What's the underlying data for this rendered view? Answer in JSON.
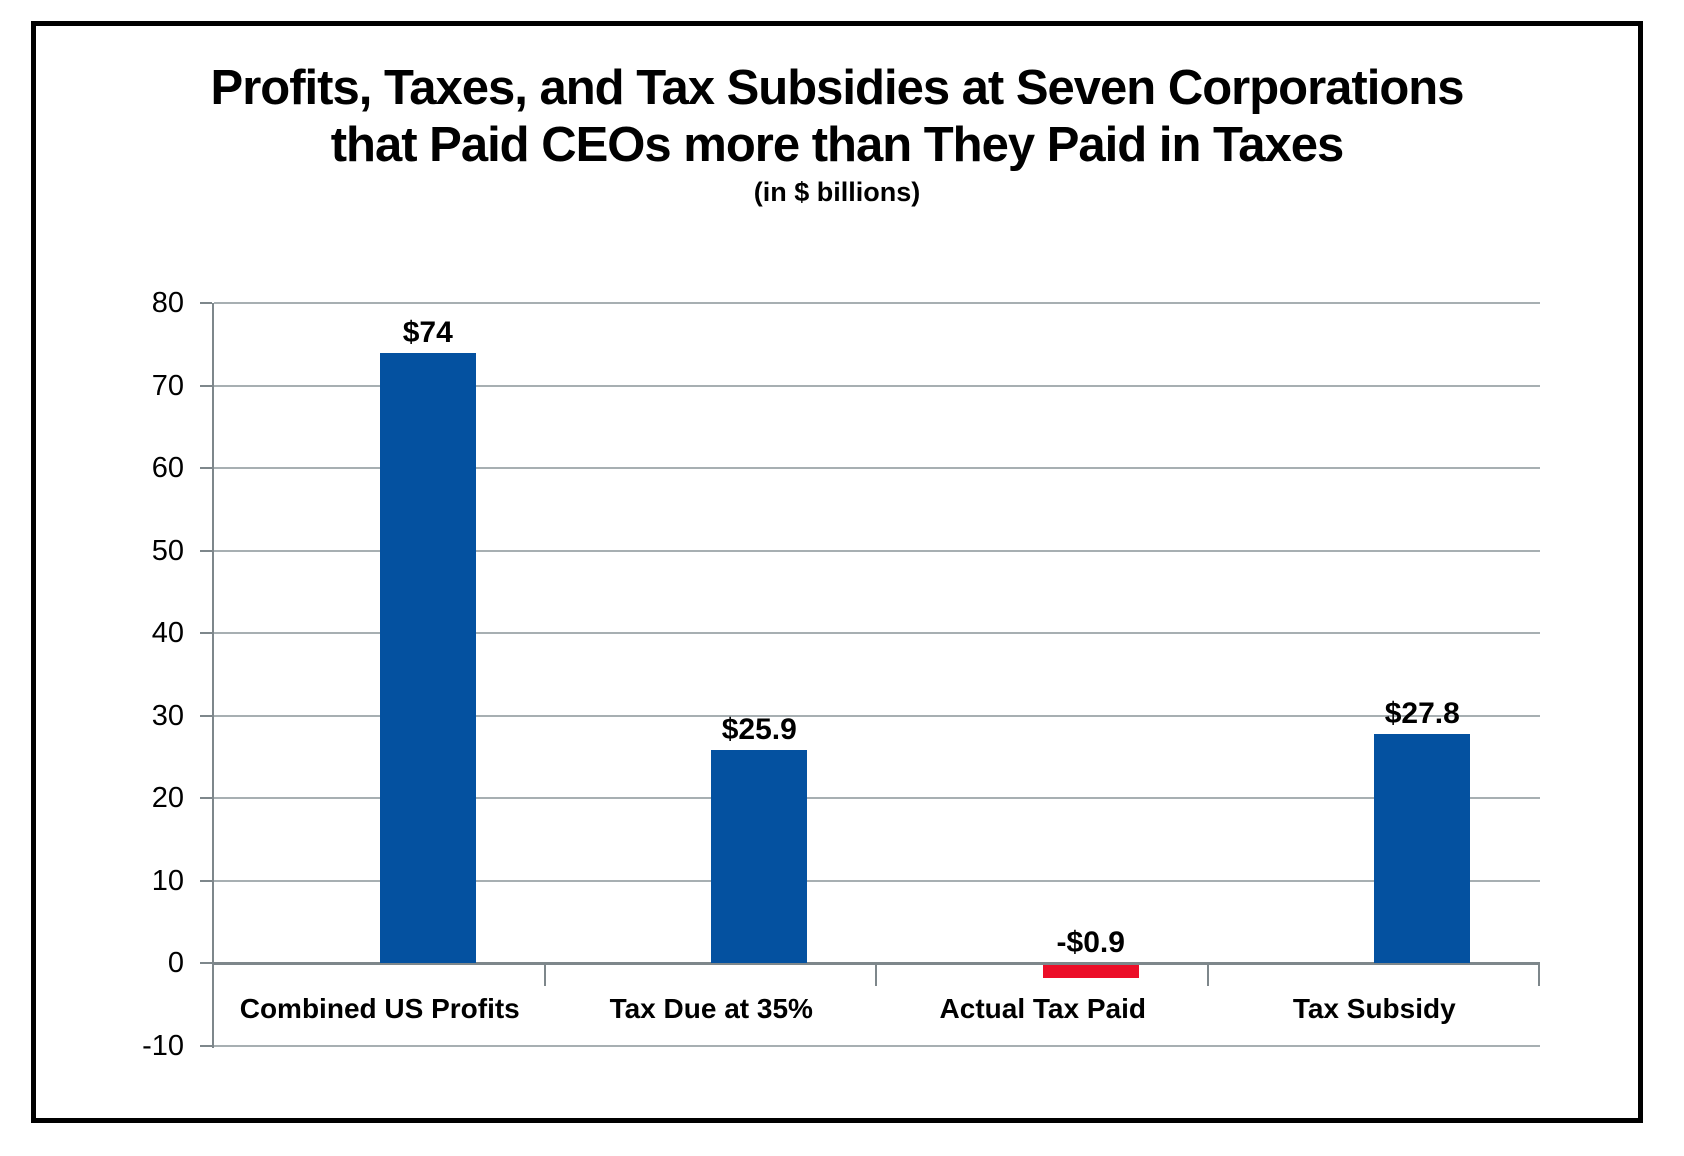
{
  "chart_data": {
    "type": "bar",
    "title": "Profits, Taxes, and Tax Subsidies at Seven Corporations that Paid CEOs more than They Paid in Taxes",
    "title_line1": "Profits, Taxes, and Tax Subsidies at Seven Corporations",
    "title_line2": "that Paid CEOs more than They Paid in Taxes",
    "subtitle": "(in $ billions)",
    "categories": [
      "Combined US Profits",
      "Tax Due at 35%",
      "Actual Tax Paid",
      "Tax Subsidy"
    ],
    "values": [
      74,
      25.9,
      -0.9,
      27.8
    ],
    "value_labels": [
      "$74",
      "$25.9",
      "-$0.9",
      "$27.8"
    ],
    "bar_colors": [
      "#0451A0",
      "#0451A0",
      "#EC0E28",
      "#0451A0"
    ],
    "xlabel": "",
    "ylabel": "",
    "ylim": [
      -10,
      80
    ],
    "yticks": [
      80,
      70,
      60,
      50,
      40,
      30,
      20,
      10,
      0,
      -10
    ],
    "grid": true,
    "legend": "none",
    "colors": {
      "positive_bar": "#0451A0",
      "negative_bar": "#EC0E28",
      "gridline": "#A7AFB2",
      "axis": "#7E878B",
      "frame": "#000000",
      "text": "#000000",
      "background": "#FFFFFF"
    }
  }
}
